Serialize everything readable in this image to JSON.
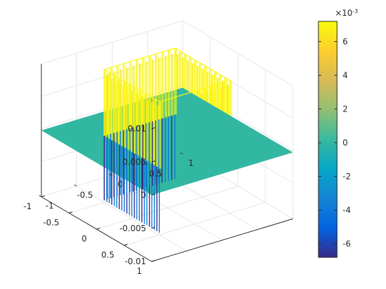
{
  "chart_data": {
    "type": "surface",
    "x": [
      -1,
      1
    ],
    "y": [
      -1,
      1
    ],
    "zlim": [
      -0.01,
      0.01
    ],
    "background_z": 0,
    "square_region": {
      "x": [
        -0.5,
        0.5
      ],
      "y": [
        -0.5,
        0.5
      ]
    },
    "spike_extremes": {
      "max": 0.01,
      "min": -0.01
    },
    "x_ticks": [
      "-1",
      "-0.5",
      "0",
      "0.5",
      "1"
    ],
    "y_ticks": [
      "1",
      "0.5",
      "0",
      "-0.5",
      "-1"
    ],
    "z_ticks": [
      "0.01",
      "0.005",
      "0",
      "-0.005",
      "-0.01"
    ],
    "grid": true,
    "colorbar": {
      "limits": [
        -0.0068,
        0.0072
      ],
      "ticks": [
        "6",
        "4",
        "2",
        "0",
        "-2",
        "-4",
        "-6"
      ],
      "exponent_label": "×10",
      "exponent_power": "-3",
      "colormap": "parula"
    }
  }
}
